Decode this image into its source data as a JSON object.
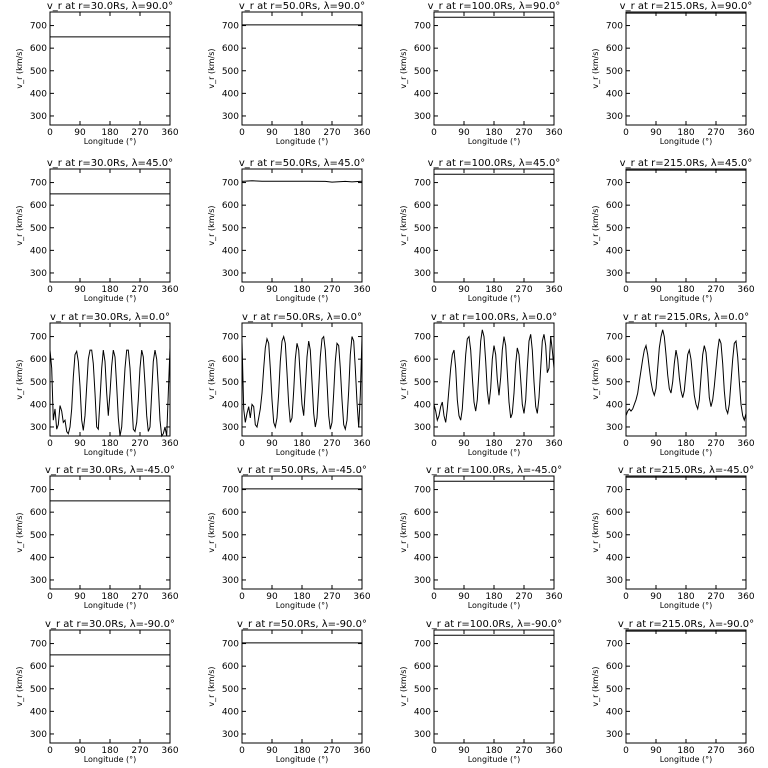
{
  "figure": {
    "xlabel": "Longitude (°)",
    "ylabel": "v_r (km/s)",
    "xticks": [
      "0",
      "90",
      "180",
      "270",
      "360"
    ],
    "yticks": [
      "300",
      "400",
      "500",
      "600",
      "700"
    ]
  },
  "chart_data": [
    {
      "type": "line",
      "title": "v_r at r=30.0Rs, λ=90.0°",
      "xlabel": "Longitude (°)",
      "ylabel": "v_r (km/s)",
      "xlim": [
        0,
        360
      ],
      "ylim": [
        260,
        760
      ],
      "x": [
        0,
        360
      ],
      "y": [
        650,
        650
      ]
    },
    {
      "type": "line",
      "title": "v_r at r=50.0Rs, λ=90.0°",
      "xlabel": "Longitude (°)",
      "ylabel": "v_r (km/s)",
      "xlim": [
        0,
        360
      ],
      "ylim": [
        260,
        760
      ],
      "x": [
        0,
        360
      ],
      "y": [
        703,
        703
      ]
    },
    {
      "type": "line",
      "title": "v_r at r=100.0Rs, λ=90.0°",
      "xlabel": "Longitude (°)",
      "ylabel": "v_r (km/s)",
      "xlim": [
        0,
        360
      ],
      "ylim": [
        260,
        760
      ],
      "x": [
        0,
        360
      ],
      "y": [
        737,
        737
      ]
    },
    {
      "type": "line",
      "title": "v_r at r=215.0Rs, λ=90.0°",
      "xlabel": "Longitude (°)",
      "ylabel": "v_r (km/s)",
      "xlim": [
        0,
        360
      ],
      "ylim": [
        260,
        760
      ],
      "x": [
        0,
        360
      ],
      "y": [
        755,
        755
      ]
    },
    {
      "type": "line",
      "title": "v_r at r=30.0Rs, λ=45.0°",
      "xlabel": "Longitude (°)",
      "ylabel": "v_r (km/s)",
      "xlim": [
        0,
        360
      ],
      "ylim": [
        260,
        760
      ],
      "x": [
        0,
        360
      ],
      "y": [
        650,
        650
      ]
    },
    {
      "type": "line",
      "title": "v_r at r=50.0Rs, λ=45.0°",
      "xlabel": "Longitude (°)",
      "ylabel": "v_r (km/s)",
      "xlim": [
        0,
        360
      ],
      "ylim": [
        260,
        760
      ],
      "x": [
        0,
        30,
        60,
        100,
        150,
        200,
        250,
        270,
        290,
        310,
        330,
        360
      ],
      "y": [
        705,
        708,
        706,
        706,
        706,
        706,
        705,
        702,
        704,
        705,
        703,
        706
      ]
    },
    {
      "type": "line",
      "title": "v_r at r=100.0Rs, λ=45.0°",
      "xlabel": "Longitude (°)",
      "ylabel": "v_r (km/s)",
      "xlim": [
        0,
        360
      ],
      "ylim": [
        260,
        760
      ],
      "x": [
        0,
        360
      ],
      "y": [
        737,
        737
      ]
    },
    {
      "type": "line",
      "title": "v_r at r=215.0Rs, λ=45.0°",
      "xlabel": "Longitude (°)",
      "ylabel": "v_r (km/s)",
      "xlim": [
        0,
        360
      ],
      "ylim": [
        260,
        760
      ],
      "x": [
        0,
        360
      ],
      "y": [
        755,
        755
      ]
    },
    {
      "type": "line",
      "title": "v_r at r=30.0Rs, λ=0.0°",
      "xlabel": "Longitude (°)",
      "ylabel": "v_r (km/s)",
      "xlim": [
        0,
        360
      ],
      "ylim": [
        260,
        760
      ],
      "x": [
        0,
        5,
        10,
        15,
        20,
        25,
        30,
        35,
        40,
        45,
        50,
        55,
        60,
        65,
        70,
        75,
        80,
        85,
        90,
        95,
        100,
        105,
        110,
        115,
        120,
        125,
        130,
        135,
        140,
        145,
        150,
        155,
        160,
        165,
        170,
        175,
        180,
        185,
        190,
        195,
        200,
        205,
        210,
        215,
        220,
        225,
        230,
        235,
        240,
        245,
        250,
        255,
        260,
        265,
        270,
        275,
        280,
        285,
        290,
        295,
        300,
        305,
        310,
        315,
        320,
        325,
        330,
        335,
        340,
        345,
        350,
        355,
        360
      ],
      "y": [
        640,
        560,
        330,
        380,
        290,
        310,
        395,
        370,
        320,
        330,
        280,
        270,
        300,
        380,
        520,
        620,
        635,
        590,
        480,
        330,
        285,
        350,
        480,
        600,
        640,
        640,
        580,
        450,
        300,
        290,
        420,
        560,
        640,
        590,
        450,
        350,
        450,
        570,
        640,
        610,
        480,
        340,
        260,
        300,
        430,
        560,
        640,
        640,
        560,
        420,
        290,
        280,
        320,
        420,
        560,
        640,
        610,
        490,
        350,
        280,
        300,
        450,
        590,
        640,
        600,
        480,
        330,
        260,
        270,
        300,
        260,
        450,
        650
      ]
    },
    {
      "type": "line",
      "title": "v_r at r=50.0Rs, λ=0.0°",
      "xlabel": "Longitude (°)",
      "ylabel": "v_r (km/s)",
      "xlim": [
        0,
        360
      ],
      "ylim": [
        260,
        760
      ],
      "x": [
        0,
        5,
        10,
        15,
        20,
        25,
        30,
        35,
        40,
        45,
        50,
        55,
        60,
        65,
        70,
        75,
        80,
        85,
        90,
        95,
        100,
        105,
        110,
        115,
        120,
        125,
        130,
        135,
        140,
        145,
        150,
        155,
        160,
        165,
        170,
        175,
        180,
        185,
        190,
        195,
        200,
        205,
        210,
        215,
        220,
        225,
        230,
        235,
        240,
        245,
        250,
        255,
        260,
        265,
        270,
        275,
        280,
        285,
        290,
        295,
        300,
        305,
        310,
        315,
        320,
        325,
        330,
        335,
        340,
        345,
        350,
        355,
        360
      ],
      "y": [
        680,
        380,
        320,
        360,
        390,
        340,
        400,
        390,
        310,
        300,
        340,
        380,
        450,
        560,
        650,
        690,
        670,
        560,
        420,
        320,
        300,
        340,
        450,
        590,
        680,
        700,
        670,
        540,
        400,
        320,
        340,
        460,
        600,
        670,
        640,
        520,
        400,
        350,
        470,
        610,
        680,
        640,
        500,
        360,
        300,
        340,
        470,
        610,
        690,
        700,
        640,
        500,
        350,
        290,
        320,
        450,
        590,
        670,
        660,
        560,
        420,
        310,
        290,
        330,
        460,
        620,
        700,
        680,
        560,
        410,
        300,
        440,
        700
      ]
    },
    {
      "type": "line",
      "title": "v_r at r=100.0Rs, λ=0.0°",
      "xlabel": "Longitude (°)",
      "ylabel": "v_r (km/s)",
      "xlim": [
        0,
        360
      ],
      "ylim": [
        260,
        760
      ],
      "x": [
        0,
        5,
        10,
        15,
        20,
        25,
        30,
        35,
        40,
        45,
        50,
        55,
        60,
        65,
        70,
        75,
        80,
        85,
        90,
        95,
        100,
        105,
        110,
        115,
        120,
        125,
        130,
        135,
        140,
        145,
        150,
        155,
        160,
        165,
        170,
        175,
        180,
        185,
        190,
        195,
        200,
        205,
        210,
        215,
        220,
        225,
        230,
        235,
        240,
        245,
        250,
        255,
        260,
        265,
        270,
        275,
        280,
        285,
        290,
        295,
        300,
        305,
        310,
        315,
        320,
        325,
        330,
        335,
        340,
        345,
        350,
        355,
        360
      ],
      "y": [
        400,
        370,
        330,
        350,
        390,
        410,
        350,
        320,
        380,
        470,
        560,
        620,
        640,
        560,
        420,
        350,
        330,
        380,
        500,
        620,
        690,
        700,
        640,
        520,
        410,
        370,
        420,
        550,
        680,
        730,
        700,
        590,
        460,
        400,
        470,
        600,
        660,
        620,
        510,
        440,
        520,
        640,
        700,
        660,
        540,
        410,
        340,
        360,
        450,
        580,
        650,
        620,
        510,
        400,
        360,
        420,
        560,
        680,
        710,
        640,
        500,
        390,
        360,
        430,
        560,
        680,
        710,
        660,
        540,
        560,
        700,
        640,
        560
      ]
    },
    {
      "type": "line",
      "title": "v_r at r=215.0Rs, λ=0.0°",
      "xlabel": "Longitude (°)",
      "ylabel": "v_r (km/s)",
      "xlim": [
        0,
        360
      ],
      "ylim": [
        260,
        760
      ],
      "x": [
        0,
        5,
        10,
        15,
        20,
        25,
        30,
        35,
        40,
        45,
        50,
        55,
        60,
        65,
        70,
        75,
        80,
        85,
        90,
        95,
        100,
        105,
        110,
        115,
        120,
        125,
        130,
        135,
        140,
        145,
        150,
        155,
        160,
        165,
        170,
        175,
        180,
        185,
        190,
        195,
        200,
        205,
        210,
        215,
        220,
        225,
        230,
        235,
        240,
        245,
        250,
        255,
        260,
        265,
        270,
        275,
        280,
        285,
        290,
        295,
        300,
        305,
        310,
        315,
        320,
        325,
        330,
        335,
        340,
        345,
        350,
        355,
        360
      ],
      "y": [
        350,
        370,
        380,
        370,
        380,
        400,
        420,
        450,
        500,
        550,
        600,
        640,
        660,
        620,
        560,
        500,
        460,
        440,
        470,
        560,
        650,
        700,
        730,
        700,
        620,
        530,
        470,
        450,
        500,
        580,
        640,
        600,
        520,
        460,
        430,
        460,
        540,
        620,
        640,
        600,
        520,
        440,
        400,
        380,
        420,
        520,
        620,
        660,
        630,
        540,
        430,
        390,
        420,
        480,
        560,
        640,
        690,
        670,
        580,
        460,
        380,
        360,
        400,
        500,
        600,
        670,
        680,
        610,
        500,
        400,
        350,
        330,
        360
      ]
    },
    {
      "type": "line",
      "title": "v_r at r=30.0Rs, λ=-45.0°",
      "xlabel": "Longitude (°)",
      "ylabel": "v_r (km/s)",
      "xlim": [
        0,
        360
      ],
      "ylim": [
        260,
        760
      ],
      "x": [
        0,
        360
      ],
      "y": [
        650,
        650
      ]
    },
    {
      "type": "line",
      "title": "v_r at r=50.0Rs, λ=-45.0°",
      "xlabel": "Longitude (°)",
      "ylabel": "v_r (km/s)",
      "xlim": [
        0,
        360
      ],
      "ylim": [
        260,
        760
      ],
      "x": [
        0,
        360
      ],
      "y": [
        703,
        703
      ]
    },
    {
      "type": "line",
      "title": "v_r at r=100.0Rs, λ=-45.0°",
      "xlabel": "Longitude (°)",
      "ylabel": "v_r (km/s)",
      "xlim": [
        0,
        360
      ],
      "ylim": [
        260,
        760
      ],
      "x": [
        0,
        360
      ],
      "y": [
        737,
        737
      ]
    },
    {
      "type": "line",
      "title": "v_r at r=215.0Rs, λ=-45.0°",
      "xlabel": "Longitude (°)",
      "ylabel": "v_r (km/s)",
      "xlim": [
        0,
        360
      ],
      "ylim": [
        260,
        760
      ],
      "x": [
        0,
        360
      ],
      "y": [
        755,
        755
      ]
    },
    {
      "type": "line",
      "title": "v_r at r=30.0Rs, λ=-90.0°",
      "xlabel": "Longitude (°)",
      "ylabel": "v_r (km/s)",
      "xlim": [
        0,
        360
      ],
      "ylim": [
        260,
        760
      ],
      "x": [
        0,
        360
      ],
      "y": [
        650,
        650
      ]
    },
    {
      "type": "line",
      "title": "v_r at r=50.0Rs, λ=-90.0°",
      "xlabel": "Longitude (°)",
      "ylabel": "v_r (km/s)",
      "xlim": [
        0,
        360
      ],
      "ylim": [
        260,
        760
      ],
      "x": [
        0,
        360
      ],
      "y": [
        703,
        703
      ]
    },
    {
      "type": "line",
      "title": "v_r at r=100.0Rs, λ=-90.0°",
      "xlabel": "Longitude (°)",
      "ylabel": "v_r (km/s)",
      "xlim": [
        0,
        360
      ],
      "ylim": [
        260,
        760
      ],
      "x": [
        0,
        360
      ],
      "y": [
        737,
        737
      ]
    },
    {
      "type": "line",
      "title": "v_r at r=215.0Rs, λ=-90.0°",
      "xlabel": "Longitude (°)",
      "ylabel": "v_r (km/s)",
      "xlim": [
        0,
        360
      ],
      "ylim": [
        260,
        760
      ],
      "x": [
        0,
        360
      ],
      "y": [
        755,
        755
      ]
    }
  ]
}
